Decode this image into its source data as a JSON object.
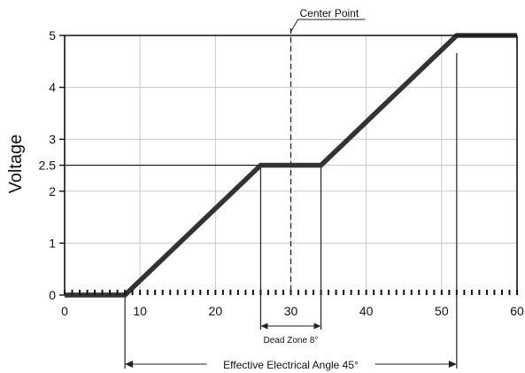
{
  "chart_data": {
    "type": "line",
    "title": "",
    "xlabel": "",
    "ylabel": "Voltage",
    "xlim": [
      0,
      60
    ],
    "ylim": [
      0,
      5
    ],
    "x_ticks": [
      0,
      10,
      20,
      30,
      40,
      50,
      60
    ],
    "y_ticks": [
      0,
      1,
      2,
      2.5,
      3,
      4,
      5
    ],
    "x_minor_step": 1,
    "grid": true,
    "legend": "none",
    "series": [
      {
        "x": [
          0,
          8,
          26,
          34,
          52,
          60
        ],
        "y": [
          0,
          0,
          2.5,
          2.5,
          5,
          5
        ]
      }
    ],
    "annotations": {
      "center_point": {
        "label": "Center Point",
        "x": 30
      },
      "reference_level": {
        "y": 2.5,
        "x_end": 26
      },
      "dead_zone": {
        "label": "Dead Zone 8°",
        "x_start": 26,
        "x_end": 34
      },
      "effective_angle": {
        "label": "Effective Electrical Angle 45°",
        "x_start": 8,
        "x_end": 52
      }
    },
    "colors": {
      "line": "#333333",
      "grid": "#c8c8c8",
      "axis": "#111111",
      "guide": "#222222"
    }
  }
}
